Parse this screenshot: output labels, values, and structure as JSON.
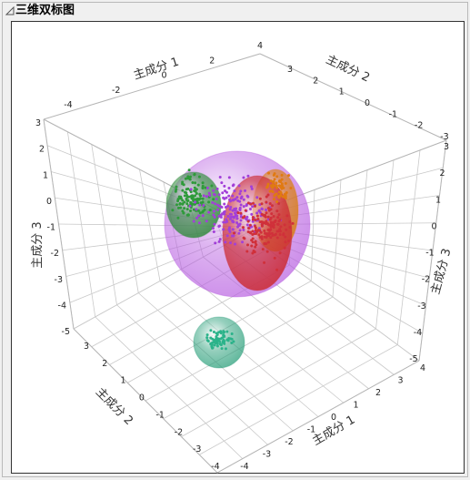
{
  "window": {
    "title": "三维双标图"
  },
  "chart_data": {
    "type": "scatter3d",
    "title": "",
    "axes": {
      "x": {
        "label": "主成分 1",
        "ticks": [
          -4,
          -3,
          -2,
          -1,
          0,
          1,
          2,
          3,
          4
        ],
        "tick_labels_shown_back": [
          "-4",
          "-2",
          "0",
          "2",
          "4"
        ],
        "tick_labels_shown_front": [
          "-4",
          "-3",
          "-2",
          "-1",
          "0",
          "1",
          "2",
          "3",
          "4"
        ],
        "range": [
          -4,
          4
        ]
      },
      "y": {
        "label": "主成分 2",
        "ticks_back": [
          "3",
          "2",
          "1",
          "0",
          "-1",
          "-2",
          "-3"
        ],
        "ticks_front": [
          "3",
          "2",
          "1",
          "0",
          "-1",
          "-2",
          "-3",
          "-4"
        ],
        "range": [
          -4,
          3
        ]
      },
      "z": {
        "label": "主成分 3",
        "ticks_left": [
          "3",
          "2",
          "1",
          "0",
          "-1",
          "-2",
          "-3",
          "-4",
          "-5"
        ],
        "ticks_right": [
          "3",
          "2",
          "1",
          "0",
          "-1",
          "-2",
          "-3",
          "-4",
          "-5"
        ],
        "range": [
          -5,
          3
        ]
      }
    },
    "clusters": [
      {
        "color": "#2e9a3a",
        "ellipsoid_color": "#2f8a3a",
        "center_screen_hint": "upper-left",
        "n_points": 120
      },
      {
        "color": "#a23fd8",
        "ellipsoid_color": "#b65be0",
        "center_screen_hint": "center",
        "n_points": 200
      },
      {
        "color": "#d0303a",
        "ellipsoid_color": "#cc2f38",
        "center_screen_hint": "center-right",
        "n_points": 160
      },
      {
        "color": "#e07a12",
        "ellipsoid_color": "#d9801a",
        "center_screen_hint": "upper-right",
        "n_points": 60
      },
      {
        "color": "#2bb38a",
        "ellipsoid_color": "#2a9f7a",
        "center_screen_hint": "bottom",
        "n_points": 70
      }
    ]
  }
}
